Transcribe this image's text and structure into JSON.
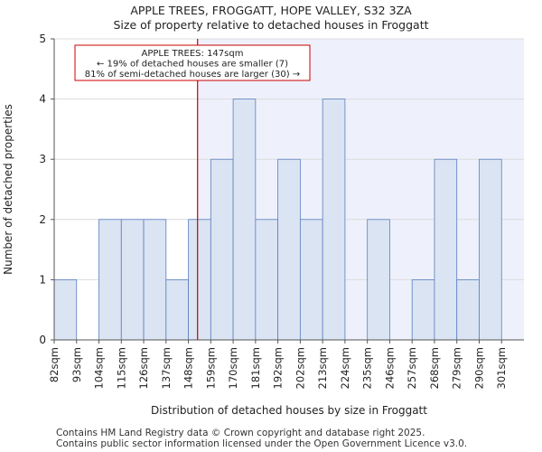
{
  "chart_data": {
    "type": "bar",
    "title": "APPLE TREES, FROGGATT, HOPE VALLEY, S32 3ZA",
    "subtitle": "Size of property relative to detached houses in Froggatt",
    "xlabel": "Distribution of detached houses by size in Froggatt",
    "ylabel": "Number of detached properties",
    "categories": [
      "82sqm",
      "93sqm",
      "104sqm",
      "115sqm",
      "126sqm",
      "137sqm",
      "148sqm",
      "159sqm",
      "170sqm",
      "181sqm",
      "192sqm",
      "202sqm",
      "213sqm",
      "224sqm",
      "235sqm",
      "246sqm",
      "257sqm",
      "268sqm",
      "279sqm",
      "290sqm",
      "301sqm"
    ],
    "values": [
      1,
      0,
      2,
      2,
      2,
      1,
      2,
      3,
      4,
      2,
      3,
      2,
      4,
      0,
      2,
      0,
      1,
      3,
      1,
      3,
      0
    ],
    "ylim": [
      0,
      5
    ],
    "yticks": [
      0,
      1,
      2,
      3,
      4,
      5
    ],
    "grid": "y",
    "marker": {
      "value_sqm": 147,
      "lines": [
        "APPLE TREES: 147sqm",
        "← 19% of detached houses are smaller (7)",
        "81% of semi-detached houses are larger (30) →"
      ],
      "color": "#cc0000"
    },
    "colors": {
      "bar_fill": "#dae4f3",
      "bar_stroke": "#5b7fc0",
      "highlight_bg": "#eef1fb",
      "grid": "#dcdcdc"
    }
  },
  "footer": {
    "line1": "Contains HM Land Registry data © Crown copyright and database right 2025.",
    "line2": "Contains public sector information licensed under the Open Government Licence v3.0."
  }
}
